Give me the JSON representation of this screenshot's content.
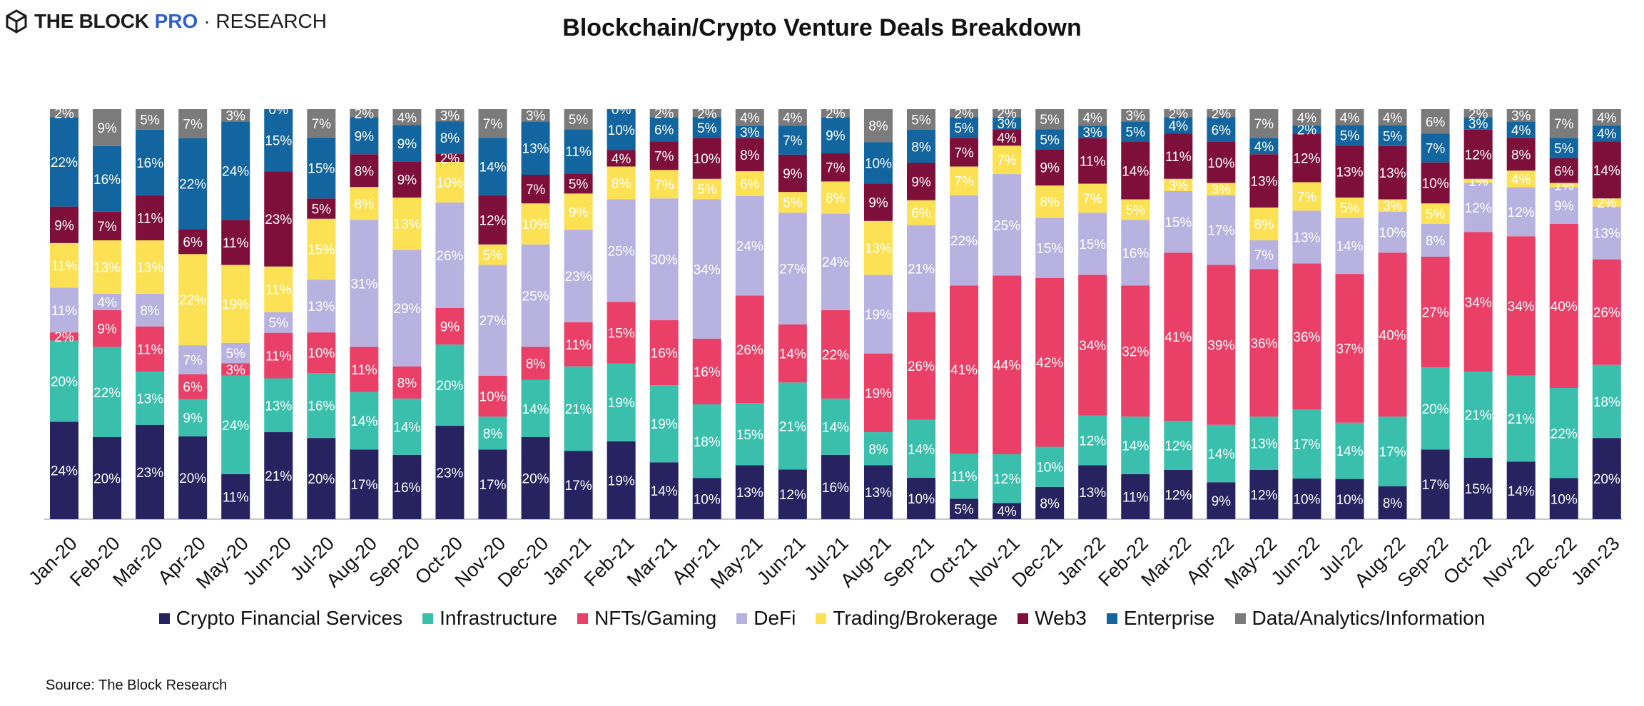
{
  "brand": {
    "icon": "hexagon-cube-icon",
    "name": "THE BLOCK",
    "product": "PRO",
    "section": "· RESEARCH",
    "product_color": "#2f62c8"
  },
  "source_text": "Source: The Block Research",
  "chart_data": {
    "type": "bar",
    "stacked": true,
    "normalized": true,
    "title": "Blockchain/Crypto Venture Deals Breakdown",
    "xlabel": "",
    "ylabel": "",
    "ylim": [
      0,
      100
    ],
    "grid": false,
    "legend_position": "bottom",
    "categories": [
      "Jan-20",
      "Feb-20",
      "Mar-20",
      "Apr-20",
      "May-20",
      "Jun-20",
      "Jul-20",
      "Aug-20",
      "Sep-20",
      "Oct-20",
      "Nov-20",
      "Dec-20",
      "Jan-21",
      "Feb-21",
      "Mar-21",
      "Apr-21",
      "May-21",
      "Jun-21",
      "Jul-21",
      "Aug-21",
      "Sep-21",
      "Oct-21",
      "Nov-21",
      "Dec-21",
      "Jan-22",
      "Feb-22",
      "Mar-22",
      "Apr-22",
      "May-22",
      "Jun-22",
      "Jul-22",
      "Aug-22",
      "Sep-22",
      "Oct-22",
      "Nov-22",
      "Dec-22",
      "Jan-23"
    ],
    "series": [
      {
        "name": "Crypto Financial Services",
        "color": "#272260",
        "values": [
          24,
          20,
          23,
          20,
          11,
          21,
          20,
          17,
          16,
          23,
          17,
          20,
          17,
          19,
          14,
          10,
          13,
          12,
          16,
          13,
          10,
          5,
          4,
          8,
          13,
          11,
          12,
          9,
          12,
          10,
          10,
          8,
          17,
          15,
          14,
          10,
          20
        ]
      },
      {
        "name": "Infrastructure",
        "color": "#3bbfad",
        "values": [
          20,
          22,
          13,
          9,
          24,
          13,
          16,
          14,
          14,
          20,
          8,
          14,
          21,
          19,
          19,
          18,
          15,
          21,
          14,
          8,
          14,
          11,
          12,
          10,
          12,
          14,
          12,
          14,
          13,
          17,
          14,
          17,
          20,
          21,
          21,
          22,
          18
        ]
      },
      {
        "name": "NFTs/Gaming",
        "color": "#ea3f67",
        "values": [
          2,
          9,
          11,
          6,
          3,
          11,
          10,
          11,
          8,
          9,
          10,
          8,
          11,
          15,
          16,
          16,
          26,
          14,
          22,
          19,
          26,
          41,
          44,
          42,
          34,
          32,
          41,
          39,
          36,
          36,
          37,
          40,
          27,
          34,
          34,
          40,
          26
        ]
      },
      {
        "name": "DeFi",
        "color": "#b8b2e1",
        "values": [
          11,
          4,
          8,
          7,
          5,
          5,
          13,
          31,
          29,
          26,
          27,
          25,
          23,
          25,
          30,
          34,
          24,
          27,
          24,
          19,
          21,
          22,
          25,
          15,
          15,
          16,
          15,
          17,
          7,
          13,
          14,
          10,
          8,
          12,
          12,
          9,
          13
        ]
      },
      {
        "name": "Trading/Brokerage",
        "color": "#fde154",
        "values": [
          11,
          13,
          13,
          22,
          19,
          11,
          15,
          8,
          13,
          10,
          5,
          10,
          9,
          8,
          7,
          5,
          6,
          5,
          8,
          13,
          6,
          7,
          7,
          8,
          7,
          5,
          3,
          3,
          8,
          7,
          5,
          3,
          5,
          1,
          4,
          1,
          2
        ]
      },
      {
        "name": "Web3",
        "color": "#7d0f3a",
        "values": [
          9,
          7,
          11,
          6,
          11,
          23,
          5,
          8,
          9,
          2,
          12,
          7,
          5,
          4,
          7,
          10,
          8,
          9,
          7,
          9,
          9,
          7,
          4,
          9,
          11,
          14,
          11,
          10,
          13,
          12,
          13,
          13,
          10,
          12,
          8,
          6,
          14
        ]
      },
      {
        "name": "Enterprise",
        "color": "#12659e",
        "values": [
          22,
          16,
          16,
          22,
          24,
          15,
          15,
          9,
          9,
          8,
          14,
          13,
          11,
          10,
          6,
          5,
          3,
          7,
          9,
          10,
          8,
          5,
          3,
          5,
          3,
          5,
          4,
          6,
          4,
          2,
          5,
          5,
          7,
          3,
          4,
          5,
          4
        ]
      },
      {
        "name": "Data/Analytics/Information",
        "color": "#7b7b7b",
        "values": [
          2,
          9,
          5,
          7,
          3,
          0,
          7,
          2,
          4,
          3,
          7,
          3,
          5,
          0,
          2,
          2,
          4,
          4,
          2,
          8,
          5,
          2,
          2,
          5,
          4,
          3,
          2,
          2,
          7,
          4,
          4,
          4,
          6,
          2,
          3,
          7,
          4
        ]
      }
    ],
    "value_labels_format": "{v}%"
  }
}
